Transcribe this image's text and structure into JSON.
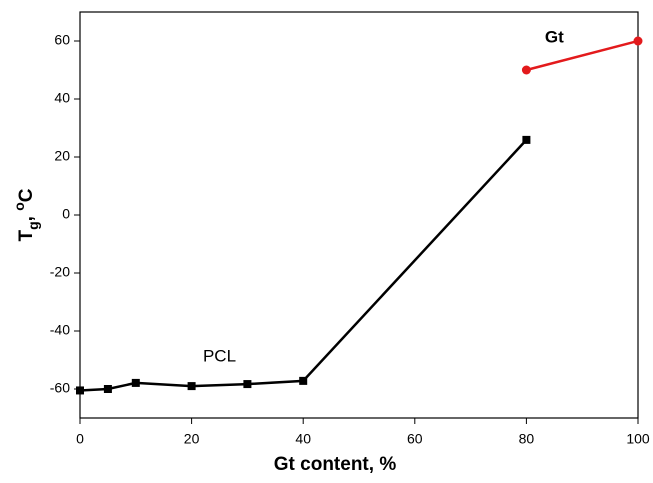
{
  "chart_data": {
    "type": "line",
    "xlabel": "Gt  content, %",
    "ylabel_parts": {
      "main": "T",
      "sub": "g",
      "sep": ", ",
      "sup": "o",
      "unit": "C"
    },
    "xlim": [
      0,
      100
    ],
    "xticks": [
      0,
      20,
      40,
      60,
      80,
      100
    ],
    "ylim": [
      -70,
      70
    ],
    "yticks": [
      -60,
      -40,
      -20,
      0,
      20,
      40,
      60
    ],
    "series": [
      {
        "name": "PCL",
        "color": "#000000",
        "marker": "square",
        "name_bold": false,
        "name_at": [
          25,
          -49
        ],
        "x": [
          0,
          5,
          10,
          20,
          30,
          40,
          80
        ],
        "values": [
          -60.5,
          -60,
          -57.9,
          -59,
          -58.3,
          -57.2,
          25.9
        ]
      },
      {
        "name": "Gt",
        "color": "#e31a1c",
        "marker": "circle",
        "name_bold": true,
        "name_at": [
          85,
          61
        ],
        "x": [
          80,
          100
        ],
        "values": [
          50,
          60
        ]
      }
    ]
  }
}
